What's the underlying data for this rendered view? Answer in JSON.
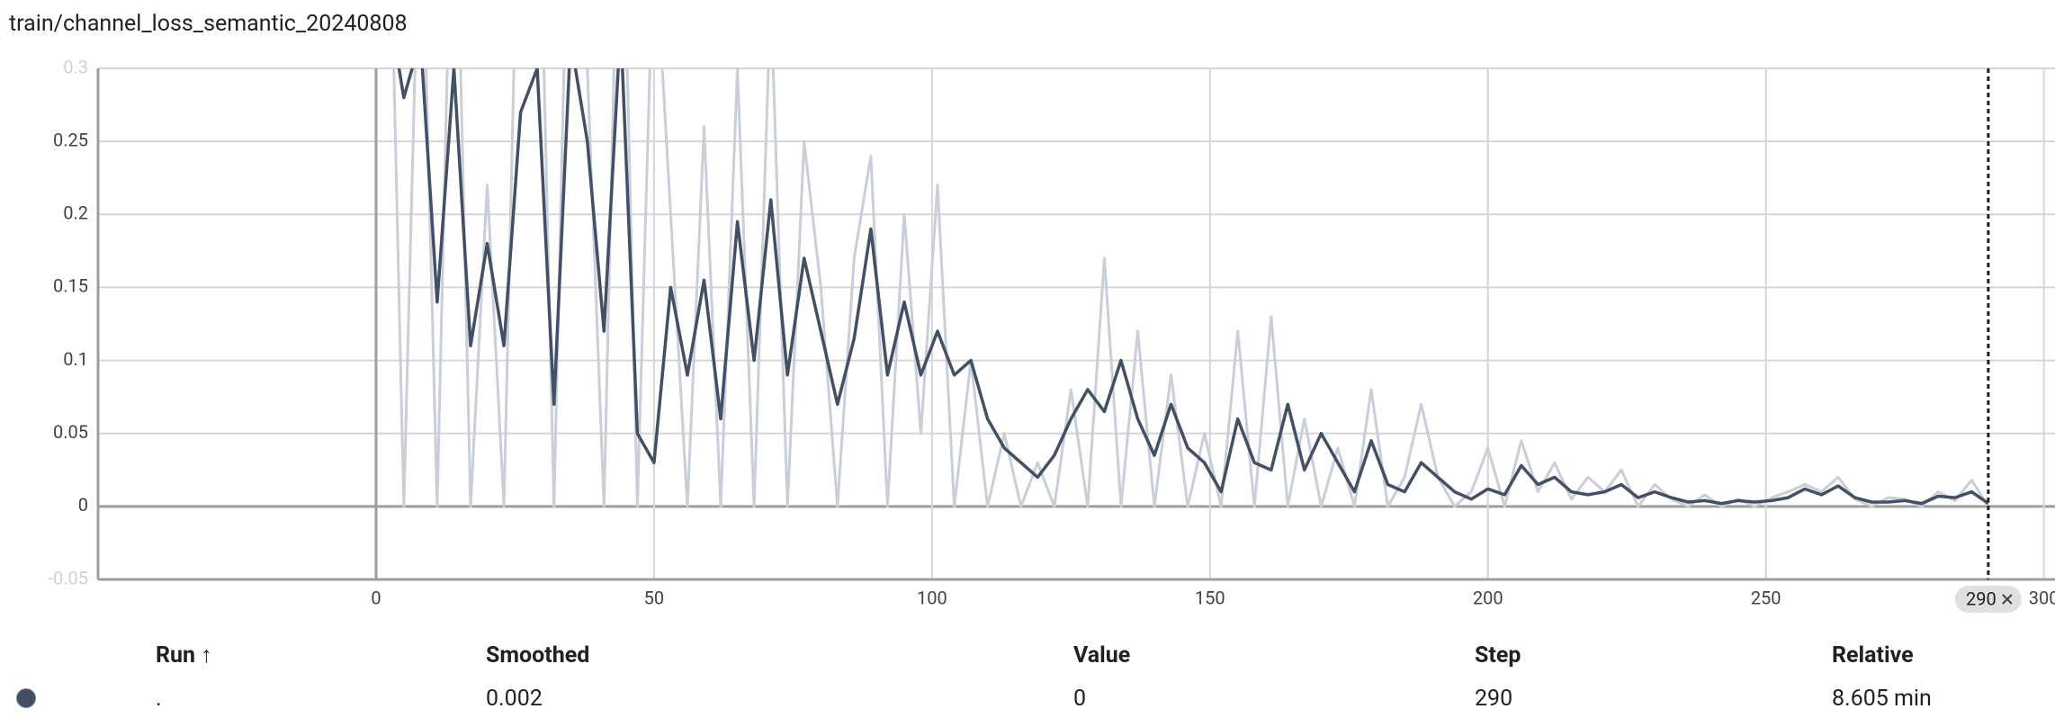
{
  "chart_data": {
    "type": "line",
    "title": "train/channel_loss_semantic_20240808",
    "x": [
      2,
      5,
      8,
      11,
      14,
      17,
      20,
      23,
      26,
      29,
      32,
      35,
      38,
      41,
      44,
      47,
      50,
      53,
      56,
      59,
      62,
      65,
      68,
      71,
      74,
      77,
      80,
      83,
      86,
      89,
      92,
      95,
      98,
      101,
      104,
      107,
      110,
      113,
      116,
      119,
      122,
      125,
      128,
      131,
      134,
      137,
      140,
      143,
      146,
      149,
      152,
      155,
      158,
      161,
      164,
      167,
      170,
      173,
      176,
      179,
      182,
      185,
      188,
      191,
      194,
      197,
      200,
      203,
      206,
      209,
      212,
      215,
      218,
      221,
      224,
      227,
      230,
      233,
      236,
      239,
      242,
      245,
      248,
      251,
      254,
      257,
      260,
      263,
      266,
      269,
      272,
      275,
      278,
      281,
      284,
      287,
      290
    ],
    "series": [
      {
        "name": "Value",
        "color": "#c9ced8",
        "values": [
          0.5,
          0,
          0.45,
          0,
          0.5,
          0,
          0.22,
          0,
          0.5,
          0.5,
          0,
          0.5,
          0.3,
          0,
          0.5,
          0,
          0.4,
          0.2,
          0,
          0.26,
          0,
          0.3,
          0,
          0.35,
          0,
          0.25,
          0.15,
          0,
          0.17,
          0.24,
          0,
          0.2,
          0.05,
          0.22,
          0,
          0.1,
          0,
          0.05,
          0,
          0.03,
          0,
          0.08,
          0,
          0.17,
          0,
          0.12,
          0,
          0.09,
          0,
          0.05,
          0,
          0.12,
          0,
          0.13,
          0,
          0.06,
          0,
          0.04,
          0,
          0.08,
          0,
          0.02,
          0.07,
          0.02,
          0,
          0.01,
          0.04,
          0,
          0.045,
          0.01,
          0.03,
          0.005,
          0.02,
          0.01,
          0.025,
          0,
          0.015,
          0.005,
          0,
          0.008,
          0,
          0.005,
          0,
          0.006,
          0.01,
          0.015,
          0.01,
          0.02,
          0.005,
          0,
          0.006,
          0.005,
          0,
          0.01,
          0.004,
          0.018,
          0
        ]
      },
      {
        "name": "Smoothed",
        "color": "#425066",
        "values": [
          0.35,
          0.28,
          0.32,
          0.14,
          0.3,
          0.11,
          0.18,
          0.11,
          0.27,
          0.3,
          0.07,
          0.32,
          0.25,
          0.12,
          0.33,
          0.05,
          0.03,
          0.15,
          0.09,
          0.155,
          0.06,
          0.195,
          0.1,
          0.21,
          0.09,
          0.17,
          0.12,
          0.07,
          0.115,
          0.19,
          0.09,
          0.14,
          0.09,
          0.12,
          0.09,
          0.1,
          0.06,
          0.04,
          0.03,
          0.02,
          0.035,
          0.06,
          0.08,
          0.065,
          0.1,
          0.06,
          0.035,
          0.07,
          0.04,
          0.03,
          0.01,
          0.06,
          0.03,
          0.025,
          0.07,
          0.025,
          0.05,
          0.03,
          0.01,
          0.045,
          0.015,
          0.01,
          0.03,
          0.02,
          0.01,
          0.005,
          0.012,
          0.008,
          0.028,
          0.015,
          0.02,
          0.01,
          0.008,
          0.01,
          0.015,
          0.006,
          0.01,
          0.006,
          0.003,
          0.004,
          0.002,
          0.004,
          0.003,
          0.004,
          0.006,
          0.012,
          0.008,
          0.014,
          0.006,
          0.003,
          0.003,
          0.004,
          0.002,
          0.007,
          0.006,
          0.01,
          0.002
        ]
      }
    ],
    "xlim": [
      -50,
      302
    ],
    "xticks": [
      0,
      50,
      100,
      150,
      200,
      250,
      300
    ],
    "ylim": [
      -0.05,
      0.3
    ],
    "yticks": [
      -0.05,
      0,
      0.05,
      0.1,
      0.15,
      0.2,
      0.25,
      0.3
    ],
    "grid": true,
    "cursor": 290
  },
  "table": {
    "headers": [
      "Run ↑",
      "Smoothed",
      "Value",
      "Step",
      "Relative"
    ],
    "rows": [
      [
        ".",
        "0.002",
        "0",
        "290",
        "8.605 min"
      ]
    ]
  }
}
